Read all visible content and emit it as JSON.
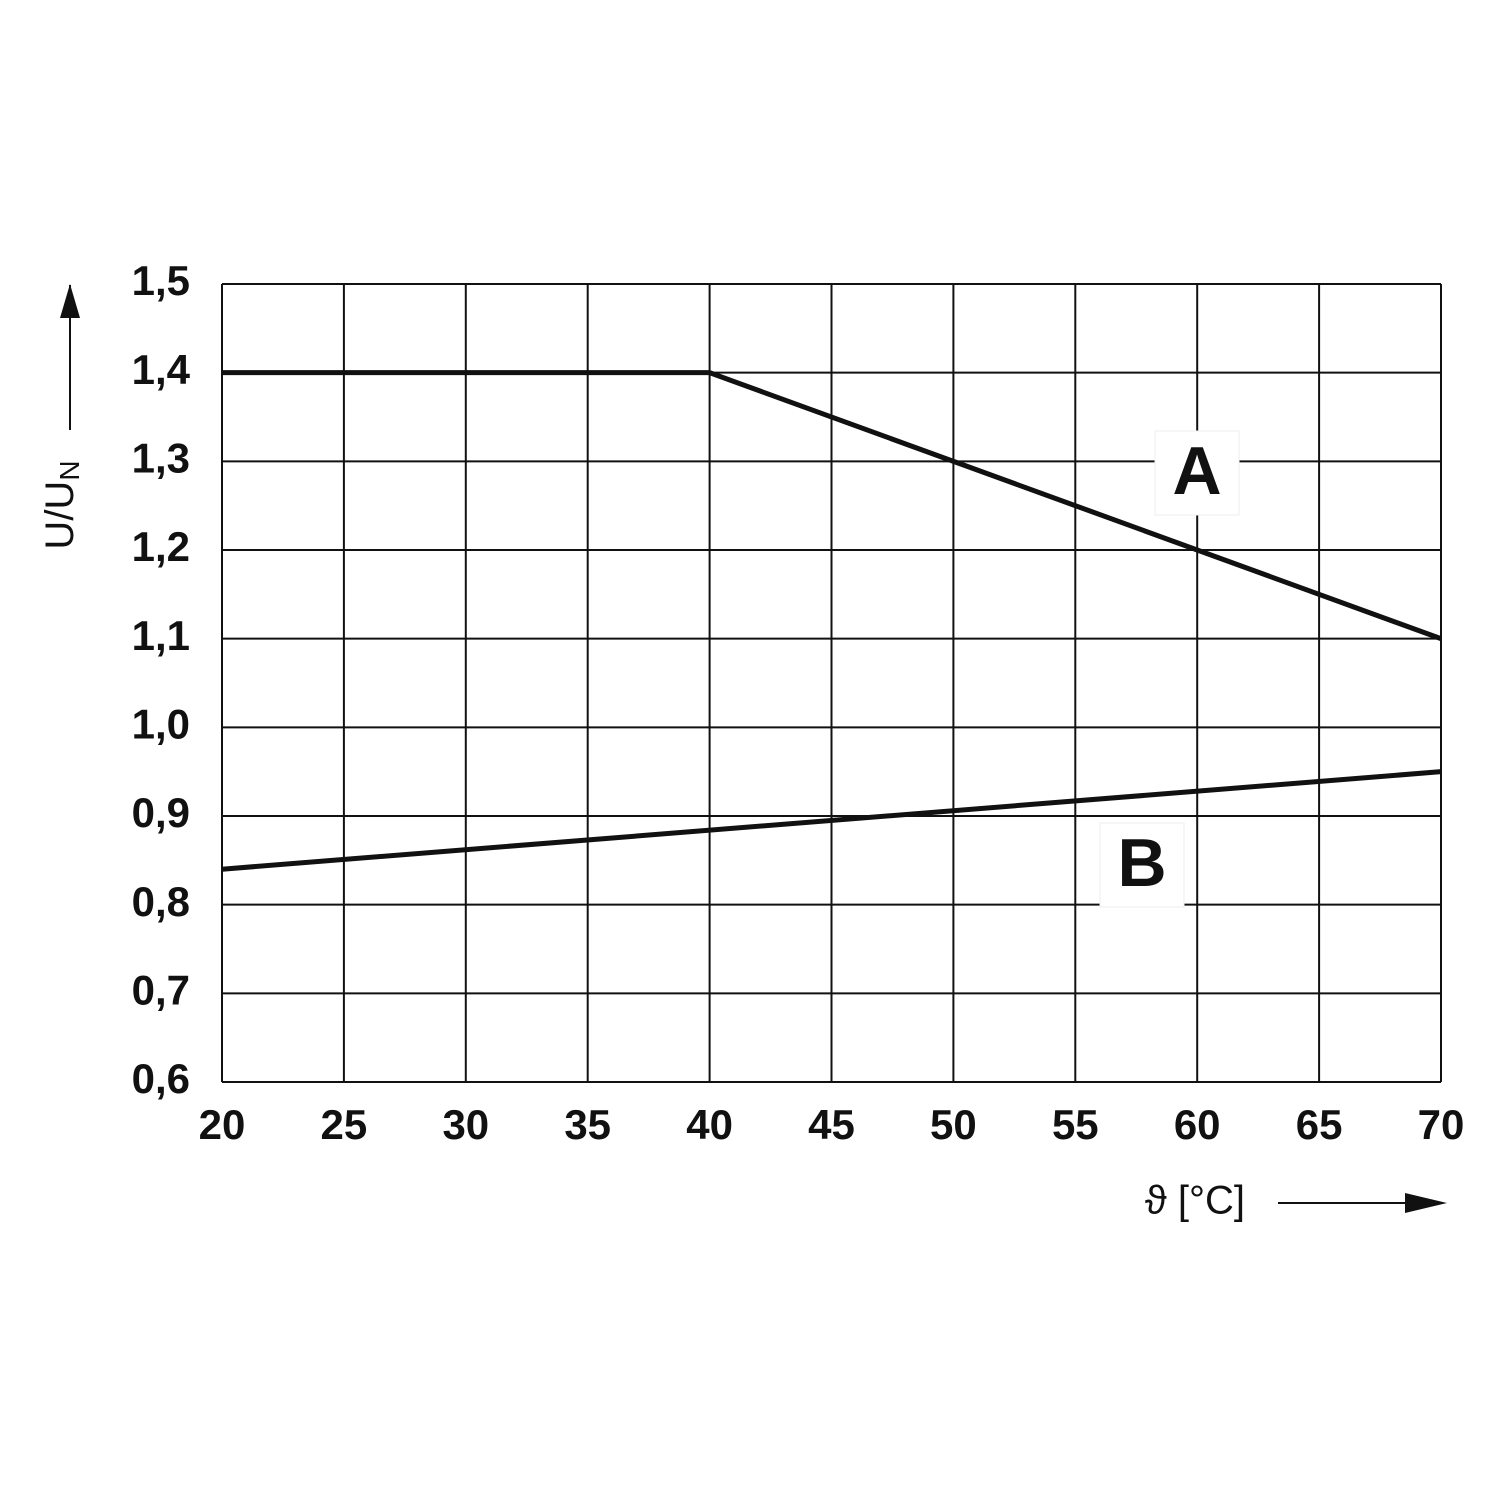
{
  "chart_data": {
    "type": "line",
    "xlabel": "ϑ [°C]",
    "ylabel": {
      "main": "U/U",
      "sub": "N"
    },
    "series": [
      {
        "name": "A",
        "color": "#111111",
        "x": [
          20,
          40,
          70
        ],
        "values": [
          1.4,
          1.4,
          1.1
        ]
      },
      {
        "name": "B",
        "color": "#111111",
        "x": [
          20,
          70
        ],
        "values": [
          0.84,
          0.95
        ]
      }
    ],
    "xlim": [
      20,
      70
    ],
    "xticks": [
      20,
      25,
      30,
      35,
      40,
      45,
      50,
      55,
      60,
      65,
      70
    ],
    "ylim": [
      0.6,
      1.5
    ],
    "yticks": [
      {
        "value": 0.6,
        "label": "0,6"
      },
      {
        "value": 0.7,
        "label": "0,7"
      },
      {
        "value": 0.8,
        "label": "0,8"
      },
      {
        "value": 0.9,
        "label": "0,9"
      },
      {
        "value": 1.0,
        "label": "1,0"
      },
      {
        "value": 1.1,
        "label": "1,1"
      },
      {
        "value": 1.2,
        "label": "1,2"
      },
      {
        "value": 1.3,
        "label": "1,3"
      },
      {
        "value": 1.4,
        "label": "1,4"
      },
      {
        "value": 1.5,
        "label": "1,5"
      }
    ],
    "grid": true
  }
}
